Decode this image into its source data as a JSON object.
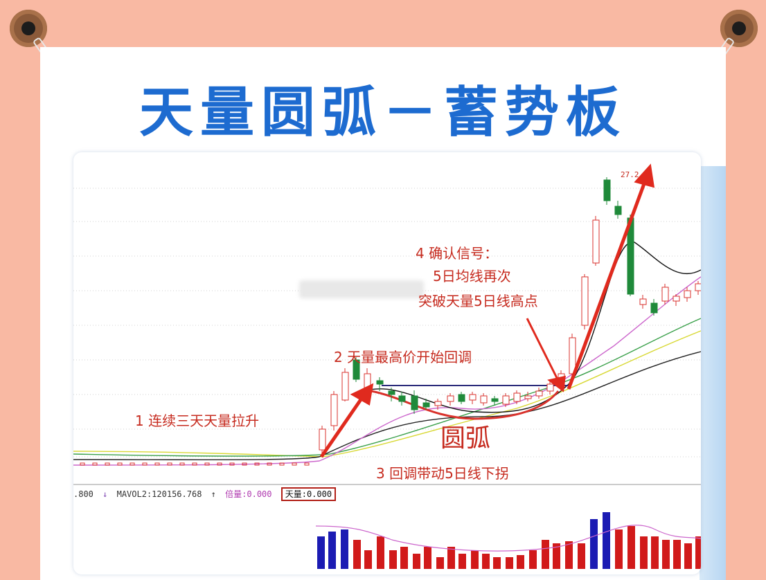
{
  "title": "天量圆弧－蓄势板",
  "annotations": {
    "step1": "1 连续三天天量拉升",
    "step2": "2 天量最高价开始回调",
    "step3": "3 回调带动5日线下拐",
    "step4_line1": "4 确认信号：",
    "step4_line2": "5日均线再次",
    "step4_line3": "突破天量5日线高点",
    "arc": "圆弧"
  },
  "price_high_label": "27.2",
  "volume_indicator": {
    "partial_value": ".800",
    "mavol2": "MAVOL2:120156.768",
    "beiliang": "倍量:0.000",
    "tianliang": "天量:0.000"
  },
  "colors": {
    "title": "#1d6bd0",
    "annotation": "#c62a1e",
    "up_candle": "#d9322c",
    "down_candle": "#1f8a3a",
    "volume_blue": "#1b1bb3",
    "volume_red": "#d11a1a"
  }
}
